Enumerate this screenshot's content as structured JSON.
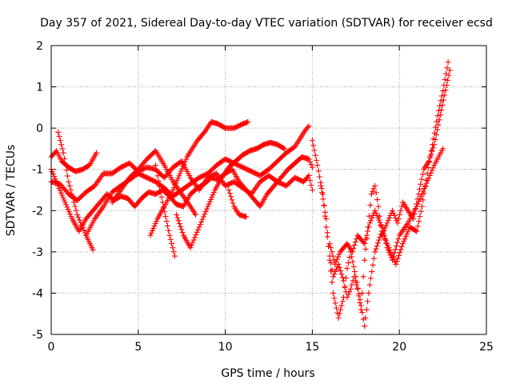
{
  "chart_data": {
    "type": "scatter",
    "title": "Day 357 of 2021, Sidereal Day-to-day VTEC variation (SDTVAR) for receiver ecsd",
    "xlabel": "GPS time / hours",
    "ylabel": "SDTVAR / TECUs",
    "xlim": [
      0,
      25
    ],
    "ylim": [
      -5,
      2
    ],
    "xticks": [
      "0",
      "5",
      "10",
      "15",
      "20",
      "25"
    ],
    "yticks": [
      "-5",
      "-4",
      "-3",
      "-2",
      "-1",
      "0",
      "1",
      "2"
    ],
    "grid": true,
    "marker": "plus",
    "color": "#ff0000",
    "tracks": [
      {
        "x": [
          0.0,
          0.3,
          0.6,
          1.0,
          1.4,
          1.8,
          2.2,
          2.6
        ],
        "y": [
          -0.7,
          -0.55,
          -0.8,
          -0.95,
          -1.05,
          -1.0,
          -0.9,
          -0.6
        ]
      },
      {
        "x": [
          0.4,
          0.7,
          1.0,
          1.5,
          2.0,
          2.4
        ],
        "y": [
          -0.1,
          -0.6,
          -1.3,
          -2.1,
          -2.6,
          -2.95
        ]
      },
      {
        "x": [
          0.0,
          0.5,
          1.0,
          1.5,
          2.0,
          2.5,
          3.0,
          3.5,
          4.0,
          4.5,
          5.0,
          5.5,
          6.0,
          6.5,
          7.0,
          7.5,
          8.0,
          8.5,
          9.0,
          9.5,
          10.0,
          10.5,
          11.0,
          11.5,
          12.0,
          12.5,
          13.0,
          13.5,
          14.0,
          14.5,
          14.8,
          15.0
        ],
        "y": [
          -1.3,
          -1.35,
          -1.6,
          -1.75,
          -1.55,
          -1.4,
          -1.1,
          -1.1,
          -0.95,
          -0.85,
          -1.05,
          -0.95,
          -1.0,
          -1.2,
          -0.95,
          -0.8,
          -1.2,
          -1.5,
          -1.2,
          -1.1,
          -1.4,
          -1.3,
          -1.45,
          -1.6,
          -1.3,
          -1.15,
          -1.3,
          -1.4,
          -1.2,
          -1.3,
          -1.15,
          -1.5
        ]
      },
      {
        "x": [
          0.0,
          0.4,
          0.8,
          1.2,
          1.6,
          2.0,
          2.4,
          2.8,
          3.2,
          3.6,
          4.0,
          4.4,
          4.8,
          5.2,
          5.6,
          6.0,
          6.4,
          6.8,
          7.2,
          7.6,
          8.0,
          8.4,
          8.8,
          9.2,
          9.6,
          10.0,
          10.4,
          10.8,
          11.2,
          11.6,
          12.0,
          12.4,
          12.8,
          13.2,
          13.6,
          14.0,
          14.4,
          14.8,
          15.0
        ],
        "y": [
          -1.0,
          -1.4,
          -1.8,
          -2.2,
          -2.5,
          -2.2,
          -2.0,
          -1.8,
          -1.6,
          -1.75,
          -1.65,
          -1.7,
          -1.9,
          -1.7,
          -1.55,
          -1.6,
          -1.5,
          -1.65,
          -1.85,
          -1.9,
          -1.6,
          -1.45,
          -1.35,
          -1.2,
          -1.25,
          -1.1,
          -1.0,
          -1.3,
          -1.5,
          -1.7,
          -1.9,
          -1.6,
          -1.4,
          -1.2,
          -1.0,
          -0.85,
          -0.7,
          -0.75,
          -0.95
        ]
      },
      {
        "x": [
          2.0,
          2.5,
          3.0,
          3.5,
          4.0,
          4.5,
          5.0,
          5.5,
          6.0,
          6.5,
          7.0,
          7.5,
          8.0,
          8.5,
          9.0,
          9.5,
          10.0,
          10.5,
          11.0,
          11.5,
          12.0,
          12.5,
          13.0,
          13.5,
          14.0,
          14.3,
          14.6,
          14.8
        ],
        "y": [
          -2.6,
          -2.2,
          -1.9,
          -1.55,
          -1.4,
          -1.25,
          -1.1,
          -1.2,
          -1.3,
          -1.45,
          -1.65,
          -1.5,
          -1.35,
          -1.2,
          -1.1,
          -0.9,
          -0.75,
          -0.85,
          -0.95,
          -1.05,
          -1.15,
          -1.0,
          -0.8,
          -0.6,
          -0.45,
          -0.25,
          -0.05,
          0.05
        ]
      },
      {
        "x": [
          3.5,
          4.0,
          4.5,
          5.0,
          5.5,
          6.0,
          6.5,
          7.0,
          7.5,
          8.0,
          8.3
        ],
        "y": [
          -1.8,
          -1.5,
          -1.2,
          -1.0,
          -0.75,
          -0.55,
          -0.9,
          -1.3,
          -1.6,
          -1.9,
          -2.1
        ]
      },
      {
        "x": [
          5.7,
          6.1,
          6.5,
          7.0,
          7.4,
          7.8,
          8.1,
          8.4,
          8.8,
          9.2,
          9.6,
          10.0,
          10.5,
          11.0,
          11.3
        ],
        "y": [
          -2.6,
          -2.2,
          -1.9,
          -1.5,
          -1.1,
          -0.7,
          -0.5,
          -0.3,
          -0.1,
          0.15,
          0.1,
          0.0,
          0.0,
          0.1,
          0.15
        ]
      },
      {
        "x": [
          6.0,
          6.4,
          6.8,
          7.1
        ],
        "y": [
          -0.9,
          -1.8,
          -2.6,
          -3.1
        ]
      },
      {
        "x": [
          7.2,
          7.6,
          8.0,
          8.5,
          9.0,
          9.4,
          9.8,
          10.2,
          10.6,
          11.0,
          11.4,
          11.8,
          12.2,
          12.6,
          13.0,
          13.4
        ],
        "y": [
          -2.1,
          -2.6,
          -2.9,
          -2.4,
          -1.9,
          -1.5,
          -1.2,
          -0.95,
          -0.8,
          -0.65,
          -0.55,
          -0.5,
          -0.4,
          -0.35,
          -0.4,
          -0.5
        ]
      },
      {
        "x": [
          10.2,
          10.5,
          10.8,
          11.2
        ],
        "y": [
          -1.5,
          -1.9,
          -2.1,
          -2.15
        ]
      },
      {
        "x": [
          15.0,
          15.3,
          15.6,
          15.8,
          16.0,
          16.2,
          16.5,
          16.8,
          17.0,
          17.2,
          17.4,
          17.6,
          17.8,
          18.0,
          18.2,
          18.4,
          18.6,
          18.8,
          19.0,
          19.3,
          19.6,
          19.9,
          20.2,
          20.5,
          20.8,
          21.1,
          21.4,
          21.7,
          22.0,
          22.3,
          22.6,
          22.9
        ],
        "y": [
          -0.3,
          -0.9,
          -1.6,
          -2.4,
          -3.1,
          -3.6,
          -3.3,
          -3.7,
          -4.1,
          -3.9,
          -3.6,
          -3.9,
          -4.4,
          -3.2,
          -2.4,
          -1.6,
          -1.4,
          -1.9,
          -2.6,
          -2.3,
          -2.0,
          -2.3,
          -1.8,
          -2.0,
          -2.2,
          -1.6,
          -1.0,
          -0.8,
          -0.4,
          0.2,
          0.8,
          1.4
        ]
      },
      {
        "x": [
          15.5,
          15.8,
          16.0,
          16.2,
          16.5,
          16.8,
          17.0,
          17.2,
          17.5,
          17.8,
          18.0,
          18.3,
          18.6,
          19.0,
          19.4,
          19.8,
          20.2,
          20.6,
          21.0,
          21.3,
          21.6,
          21.9,
          22.2,
          22.5,
          22.8
        ],
        "y": [
          -1.4,
          -2.2,
          -3.2,
          -4.0,
          -4.6,
          -4.1,
          -3.4,
          -3.0,
          -3.6,
          -4.3,
          -4.8,
          -3.8,
          -3.0,
          -2.5,
          -2.9,
          -3.3,
          -2.8,
          -2.4,
          -2.5,
          -1.9,
          -1.1,
          -0.4,
          0.3,
          0.9,
          1.6
        ]
      },
      {
        "x": [
          16.0,
          16.3,
          16.6,
          17.0,
          17.3,
          17.6,
          18.0,
          18.3,
          18.6,
          19.0,
          19.3,
          19.6,
          20.0,
          20.5,
          21.0,
          21.5,
          22.0,
          22.5
        ],
        "y": [
          -2.8,
          -3.3,
          -3.0,
          -2.8,
          -3.0,
          -2.6,
          -2.8,
          -2.3,
          -2.0,
          -2.4,
          -2.9,
          -3.2,
          -2.6,
          -2.3,
          -1.9,
          -1.4,
          -0.9,
          -0.5
        ]
      }
    ]
  }
}
